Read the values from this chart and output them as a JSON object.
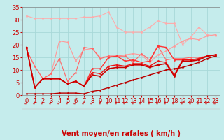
{
  "title": "",
  "xlabel": "Vent moyen/en rafales ( km/h )",
  "ylabel": "",
  "background_color": "#c5ecec",
  "grid_color": "#a8d8d8",
  "xlim": [
    -0.5,
    23.5
  ],
  "ylim": [
    0,
    35
  ],
  "yticks": [
    0,
    5,
    10,
    15,
    20,
    25,
    30,
    35
  ],
  "xticks": [
    0,
    1,
    2,
    3,
    4,
    5,
    6,
    7,
    8,
    9,
    10,
    11,
    12,
    13,
    14,
    15,
    16,
    17,
    18,
    19,
    20,
    21,
    22,
    23
  ],
  "series": [
    {
      "x": [
        0,
        1,
        2,
        3,
        4,
        5,
        6,
        7,
        8,
        9,
        10,
        11,
        12,
        13,
        14,
        15,
        16,
        17,
        18,
        19,
        20,
        21,
        22,
        23
      ],
      "y": [
        31.5,
        30.5,
        30.5,
        30.5,
        30.5,
        30.5,
        30.5,
        31.0,
        31.0,
        31.5,
        33.0,
        27.0,
        25.0,
        25.0,
        25.0,
        27.0,
        29.5,
        28.5,
        28.5,
        20.0,
        23.0,
        27.0,
        24.0,
        23.5
      ],
      "color": "#ffaaaa",
      "linewidth": 0.8,
      "marker": "o",
      "markersize": 2.0,
      "zorder": 2
    },
    {
      "x": [
        0,
        1,
        2,
        3,
        4,
        5,
        6,
        7,
        8,
        9,
        10,
        11,
        12,
        13,
        14,
        15,
        16,
        17,
        18,
        19,
        20,
        21,
        22,
        23
      ],
      "y": [
        18.0,
        11.5,
        6.5,
        8.5,
        21.5,
        21.0,
        13.5,
        18.0,
        18.5,
        15.0,
        15.5,
        15.5,
        16.0,
        16.5,
        16.0,
        13.0,
        16.0,
        17.5,
        19.5,
        21.5,
        22.5,
        22.0,
        23.5,
        24.0
      ],
      "color": "#ff9999",
      "linewidth": 0.8,
      "marker": "o",
      "markersize": 2.0,
      "zorder": 3
    },
    {
      "x": [
        0,
        1,
        2,
        3,
        4,
        5,
        6,
        7,
        8,
        9,
        10,
        11,
        12,
        13,
        14,
        15,
        16,
        17,
        18,
        19,
        20,
        21,
        22,
        23
      ],
      "y": [
        18.0,
        11.5,
        6.5,
        8.5,
        14.5,
        5.5,
        9.0,
        19.0,
        18.5,
        14.5,
        15.5,
        15.5,
        15.5,
        13.0,
        16.5,
        14.0,
        19.5,
        14.0,
        14.5,
        14.5,
        15.0,
        15.0,
        15.5,
        16.0
      ],
      "color": "#ff6666",
      "linewidth": 0.8,
      "marker": "o",
      "markersize": 2.0,
      "zorder": 4
    },
    {
      "x": [
        0,
        1,
        2,
        3,
        4,
        5,
        6,
        7,
        8,
        9,
        10,
        11,
        12,
        13,
        14,
        15,
        16,
        17,
        18,
        19,
        20,
        21,
        22,
        23
      ],
      "y": [
        19.0,
        3.0,
        6.5,
        6.5,
        6.5,
        4.5,
        5.5,
        3.5,
        10.5,
        10.5,
        15.0,
        15.5,
        13.5,
        14.0,
        13.0,
        13.5,
        19.5,
        19.0,
        14.0,
        14.0,
        14.0,
        14.5,
        15.5,
        16.0
      ],
      "color": "#ff3333",
      "linewidth": 1.0,
      "marker": "o",
      "markersize": 2.0,
      "zorder": 5
    },
    {
      "x": [
        0,
        1,
        2,
        3,
        4,
        5,
        6,
        7,
        8,
        9,
        10,
        11,
        12,
        13,
        14,
        15,
        16,
        17,
        18,
        19,
        20,
        21,
        22,
        23
      ],
      "y": [
        19.0,
        3.0,
        6.5,
        6.5,
        6.5,
        4.5,
        5.5,
        3.5,
        9.0,
        8.5,
        11.5,
        12.0,
        11.5,
        12.5,
        12.5,
        11.5,
        13.5,
        13.0,
        8.0,
        14.0,
        14.0,
        14.5,
        15.5,
        16.0
      ],
      "color": "#ee1111",
      "linewidth": 1.0,
      "marker": "o",
      "markersize": 2.0,
      "zorder": 5
    },
    {
      "x": [
        0,
        1,
        2,
        3,
        4,
        5,
        6,
        7,
        8,
        9,
        10,
        11,
        12,
        13,
        14,
        15,
        16,
        17,
        18,
        19,
        20,
        21,
        22,
        23
      ],
      "y": [
        19.0,
        3.0,
        6.5,
        6.5,
        6.5,
        4.5,
        5.5,
        3.5,
        8.0,
        7.5,
        10.5,
        11.0,
        11.0,
        12.0,
        12.0,
        11.0,
        12.0,
        12.5,
        7.5,
        13.5,
        13.5,
        14.0,
        15.5,
        16.0
      ],
      "color": "#cc0000",
      "linewidth": 1.2,
      "marker": "o",
      "markersize": 2.0,
      "zorder": 6
    },
    {
      "x": [
        0,
        1,
        2,
        3,
        4,
        5,
        6,
        7,
        8,
        9,
        10,
        11,
        12,
        13,
        14,
        15,
        16,
        17,
        18,
        19,
        20,
        21,
        22,
        23
      ],
      "y": [
        0.5,
        0.5,
        0.5,
        0.5,
        0.8,
        0.8,
        0.8,
        0.5,
        1.5,
        2.0,
        3.0,
        4.0,
        5.0,
        6.0,
        7.0,
        8.0,
        9.0,
        10.0,
        10.5,
        11.0,
        12.0,
        13.0,
        14.5,
        15.5
      ],
      "color": "#bb0000",
      "linewidth": 1.0,
      "marker": "o",
      "markersize": 2.0,
      "zorder": 5
    }
  ],
  "xlabel_color": "#cc0000",
  "xlabel_fontsize": 7,
  "tick_fontsize": 6,
  "tick_color": "#cc0000",
  "separator_color": "#cc0000",
  "arrow_color": "#cc0000"
}
